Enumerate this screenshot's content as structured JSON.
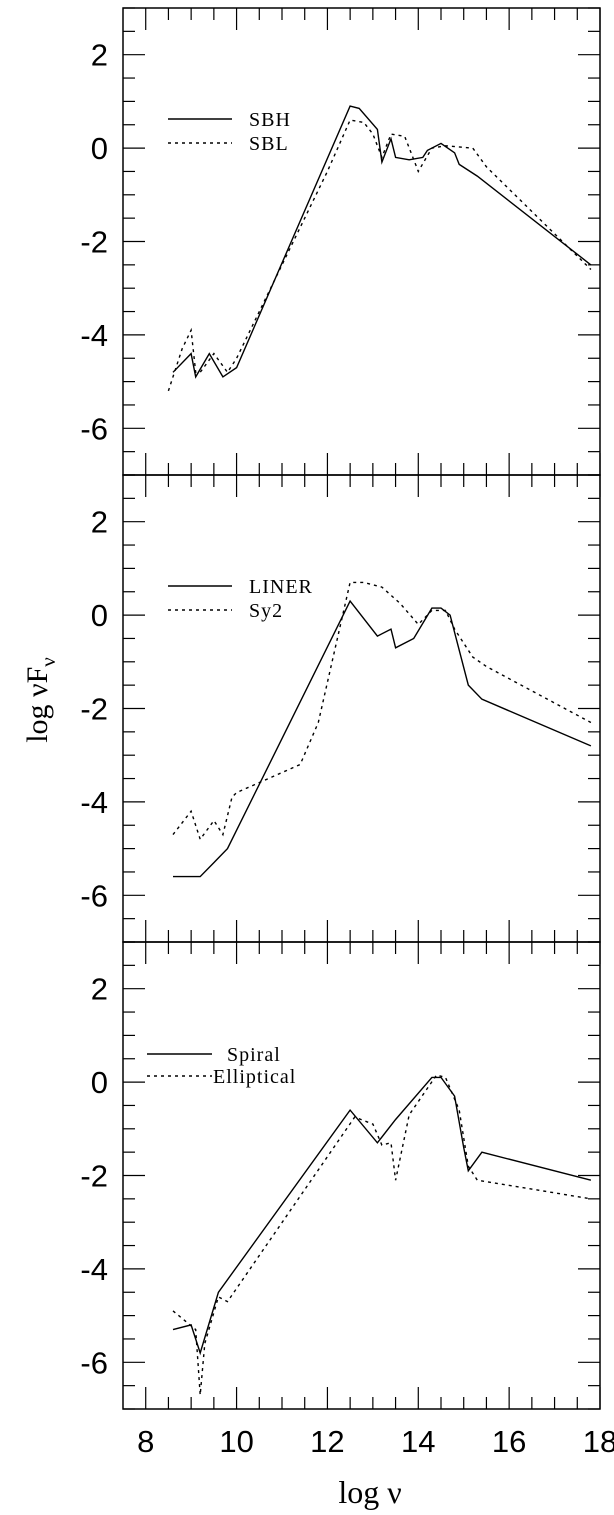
{
  "chart_data": {
    "type": "line",
    "xlabel": "log ν",
    "ylabel_main": "log νF",
    "ylabel_sub": "ν",
    "x_ticks": [
      "8",
      "10",
      "12",
      "14",
      "16",
      "18"
    ],
    "y_ticks": [
      "2",
      "0",
      "-2",
      "-4",
      "-6"
    ],
    "xlim": [
      7.5,
      18
    ],
    "panels": [
      {
        "ylim": [
          -7,
          3
        ],
        "series": [
          {
            "name": "SBH",
            "style": "solid",
            "x": [
              8.6,
              9.0,
              9.1,
              9.4,
              9.7,
              10.0,
              12.5,
              12.7,
              13.1,
              13.2,
              13.4,
              13.5,
              13.8,
              14.1,
              14.2,
              14.5,
              14.8,
              14.9,
              15.3,
              17.8
            ],
            "y": [
              -4.8,
              -4.4,
              -4.9,
              -4.4,
              -4.9,
              -4.7,
              0.9,
              0.85,
              0.4,
              -0.3,
              0.2,
              -0.2,
              -0.25,
              -0.2,
              -0.05,
              0.1,
              -0.1,
              -0.35,
              -0.6,
              -2.5
            ]
          },
          {
            "name": "SBL",
            "style": "dotted",
            "x": [
              8.5,
              8.8,
              9.0,
              9.1,
              9.2,
              9.5,
              9.8,
              10.0,
              12.0,
              12.5,
              12.8,
              13.0,
              13.2,
              13.4,
              13.7,
              14.0,
              14.3,
              14.6,
              15.2,
              15.5,
              17.8
            ],
            "y": [
              -5.2,
              -4.3,
              -3.9,
              -4.8,
              -4.8,
              -4.4,
              -4.8,
              -4.5,
              -0.5,
              0.6,
              0.55,
              0.3,
              -0.2,
              0.3,
              0.25,
              -0.5,
              0.0,
              0.05,
              0.0,
              -0.4,
              -2.6
            ]
          }
        ]
      },
      {
        "ylim": [
          -7,
          3
        ],
        "series": [
          {
            "name": "LINER",
            "style": "solid",
            "x": [
              8.6,
              9.2,
              9.5,
              9.8,
              12.5,
              13.1,
              13.4,
              13.5,
              13.9,
              14.3,
              14.5,
              14.7,
              15.1,
              15.4,
              17.8
            ],
            "y": [
              -5.6,
              -5.6,
              -5.3,
              -5.0,
              0.3,
              -0.45,
              -0.3,
              -0.7,
              -0.5,
              0.15,
              0.15,
              0.0,
              -1.5,
              -1.8,
              -2.8
            ]
          },
          {
            "name": "Sy2",
            "style": "dotted",
            "x": [
              8.6,
              9.0,
              9.2,
              9.5,
              9.7,
              9.9,
              10.0,
              11.4,
              11.8,
              12.5,
              12.8,
              13.2,
              13.6,
              14.0,
              14.3,
              14.6,
              14.8,
              15.2,
              15.5,
              17.8
            ],
            "y": [
              -4.7,
              -4.2,
              -4.8,
              -4.4,
              -4.7,
              -3.9,
              -3.8,
              -3.2,
              -2.3,
              0.7,
              0.7,
              0.6,
              0.25,
              -0.2,
              0.1,
              0.1,
              -0.3,
              -0.9,
              -1.1,
              -2.3
            ]
          }
        ]
      },
      {
        "ylim": [
          -7,
          3
        ],
        "series": [
          {
            "name": "Spiral",
            "style": "solid",
            "x": [
              8.6,
              9.0,
              9.2,
              9.6,
              12.5,
              13.1,
              13.5,
              14.3,
              14.5,
              14.8,
              15.0,
              15.1,
              15.4,
              17.8
            ],
            "y": [
              -5.3,
              -5.2,
              -5.8,
              -4.5,
              -0.6,
              -1.3,
              -0.8,
              0.1,
              0.1,
              -0.3,
              -1.4,
              -1.9,
              -1.5,
              -2.1
            ]
          },
          {
            "name": "Elliptical",
            "style": "dotted",
            "x": [
              8.6,
              9.1,
              9.2,
              9.3,
              9.6,
              9.8,
              12.6,
              13.0,
              13.2,
              13.4,
              13.5,
              13.8,
              14.4,
              14.6,
              14.9,
              15.1,
              15.3,
              17.8
            ],
            "y": [
              -4.9,
              -5.3,
              -6.7,
              -5.6,
              -4.6,
              -4.7,
              -0.75,
              -0.9,
              -1.35,
              -1.3,
              -2.1,
              -0.7,
              0.15,
              0.1,
              -0.6,
              -1.8,
              -2.1,
              -2.5
            ]
          }
        ]
      }
    ]
  }
}
